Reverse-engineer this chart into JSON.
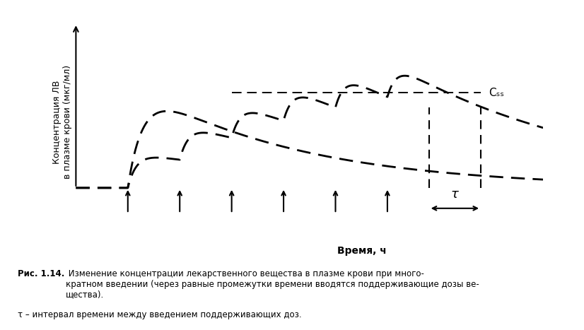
{
  "ylabel": "Концентрация ЛВ\nв плазме крови (мкг/мл)",
  "xlabel": "Время, ч",
  "css_label": "Cₛₛ",
  "tau_label": "τ",
  "fig_caption_bold": "Рис. 1.14.",
  "fig_caption": " Изменение концентрации лекарственного вещества в плазме крови при много-\nкратном введении (через равные промежутки времени вводятся поддерживающие дозы ве-\nщества).",
  "tau_caption": "τ – интервал времени между введением поддерживающих доз.",
  "arrow_times": [
    1.0,
    2.0,
    3.0,
    4.0,
    5.0,
    6.0
  ],
  "xlim": [
    0,
    9.0
  ],
  "ylim": [
    -0.5,
    2.3
  ],
  "css_level": 1.3,
  "line_color": "#000000",
  "bg_color": "#ffffff",
  "tau_start": 6.8,
  "tau_end": 7.8
}
